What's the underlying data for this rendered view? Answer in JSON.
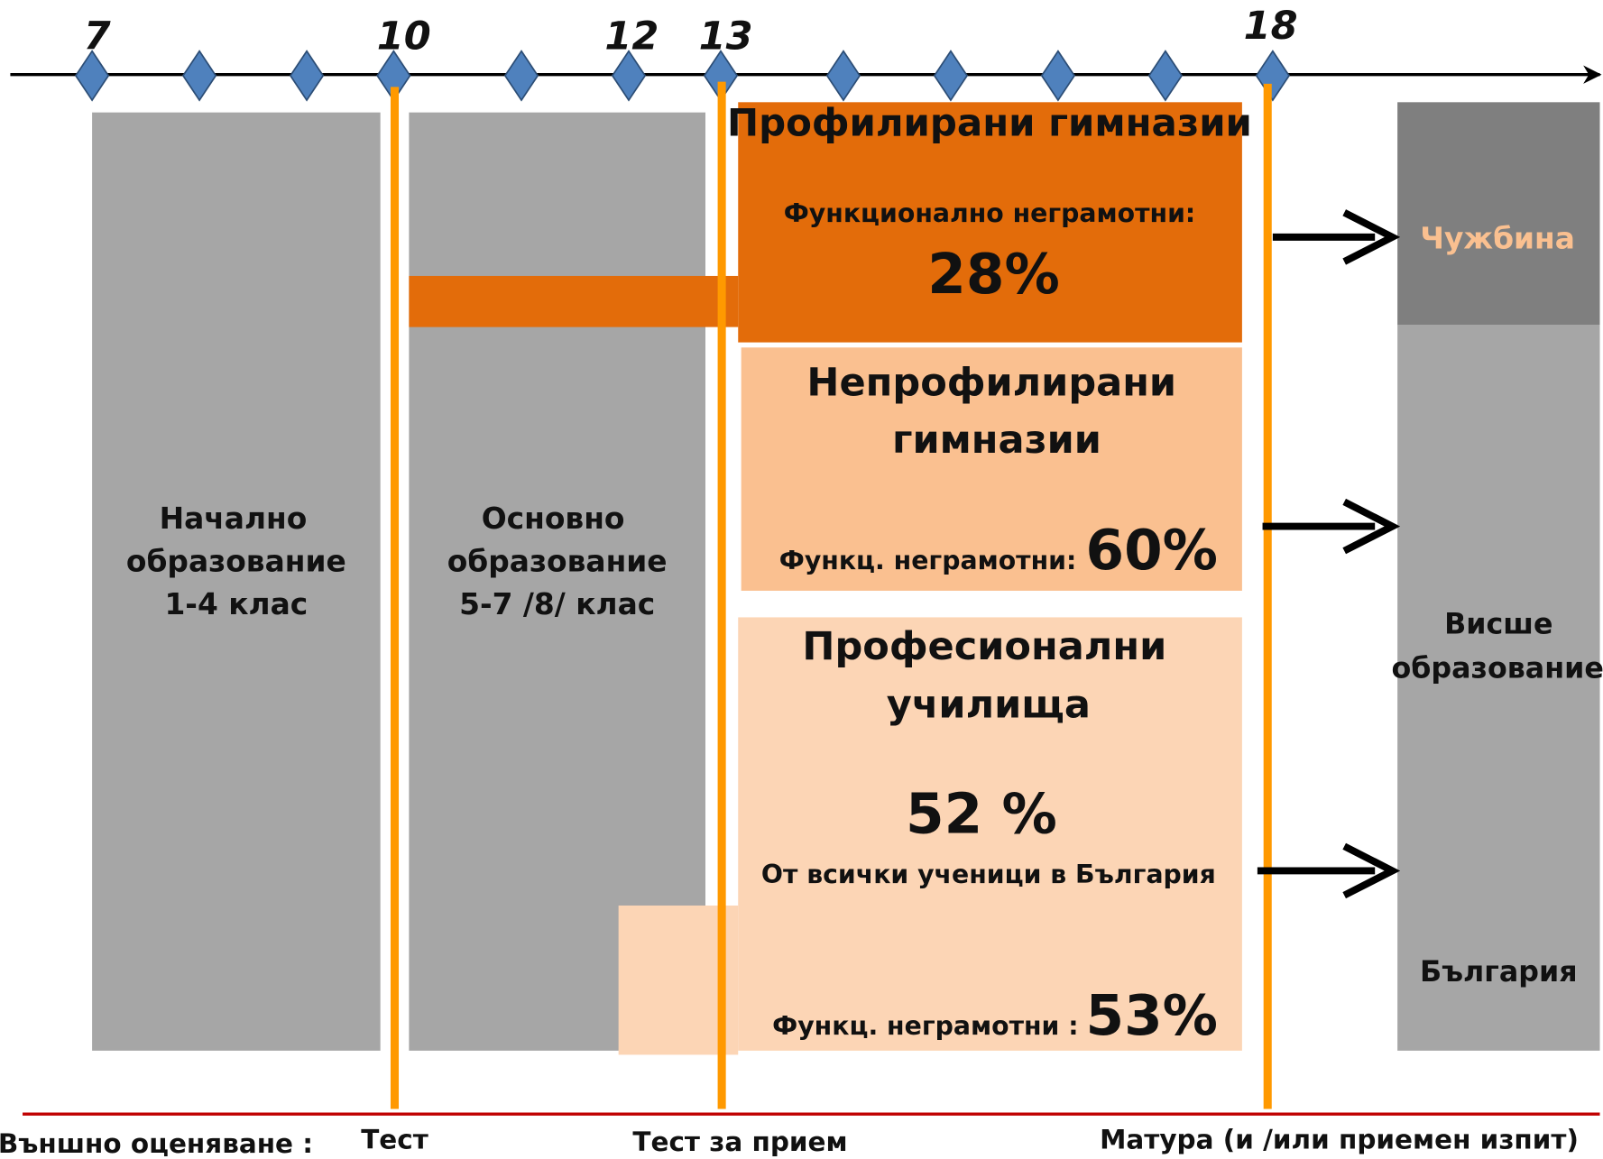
{
  "timeline": {
    "ages": [
      "7",
      "10",
      "12",
      "13",
      "18"
    ]
  },
  "primary": {
    "lines": [
      "Начално",
      "образование",
      "1-4 клас"
    ]
  },
  "basic": {
    "lines": [
      "Основно",
      "образование",
      "5-7 /8/ клас"
    ]
  },
  "profiled": {
    "title": "Профилирани гимназии",
    "note": "Функционално неграмотни:",
    "percent": "28%"
  },
  "nonprofiled": {
    "title": [
      "Непрофилирани",
      "гимназии"
    ],
    "note": "Функц. неграмотни:",
    "percent": "60%"
  },
  "vocational": {
    "title": [
      "Професионални",
      "училища"
    ],
    "share": "52 %",
    "share_note": "От всички ученици в България",
    "note": "Функц. неграмотни :",
    "percent": "53%"
  },
  "outcomes": {
    "abroad": "Чужбина",
    "higher": [
      "Висше",
      "образование"
    ],
    "bulgaria": "България"
  },
  "assessments": {
    "label": "Външно оценяване :",
    "test": "Тест",
    "admission": "Тест за прием",
    "matura": "Матура (и /или приемен изпит)"
  }
}
